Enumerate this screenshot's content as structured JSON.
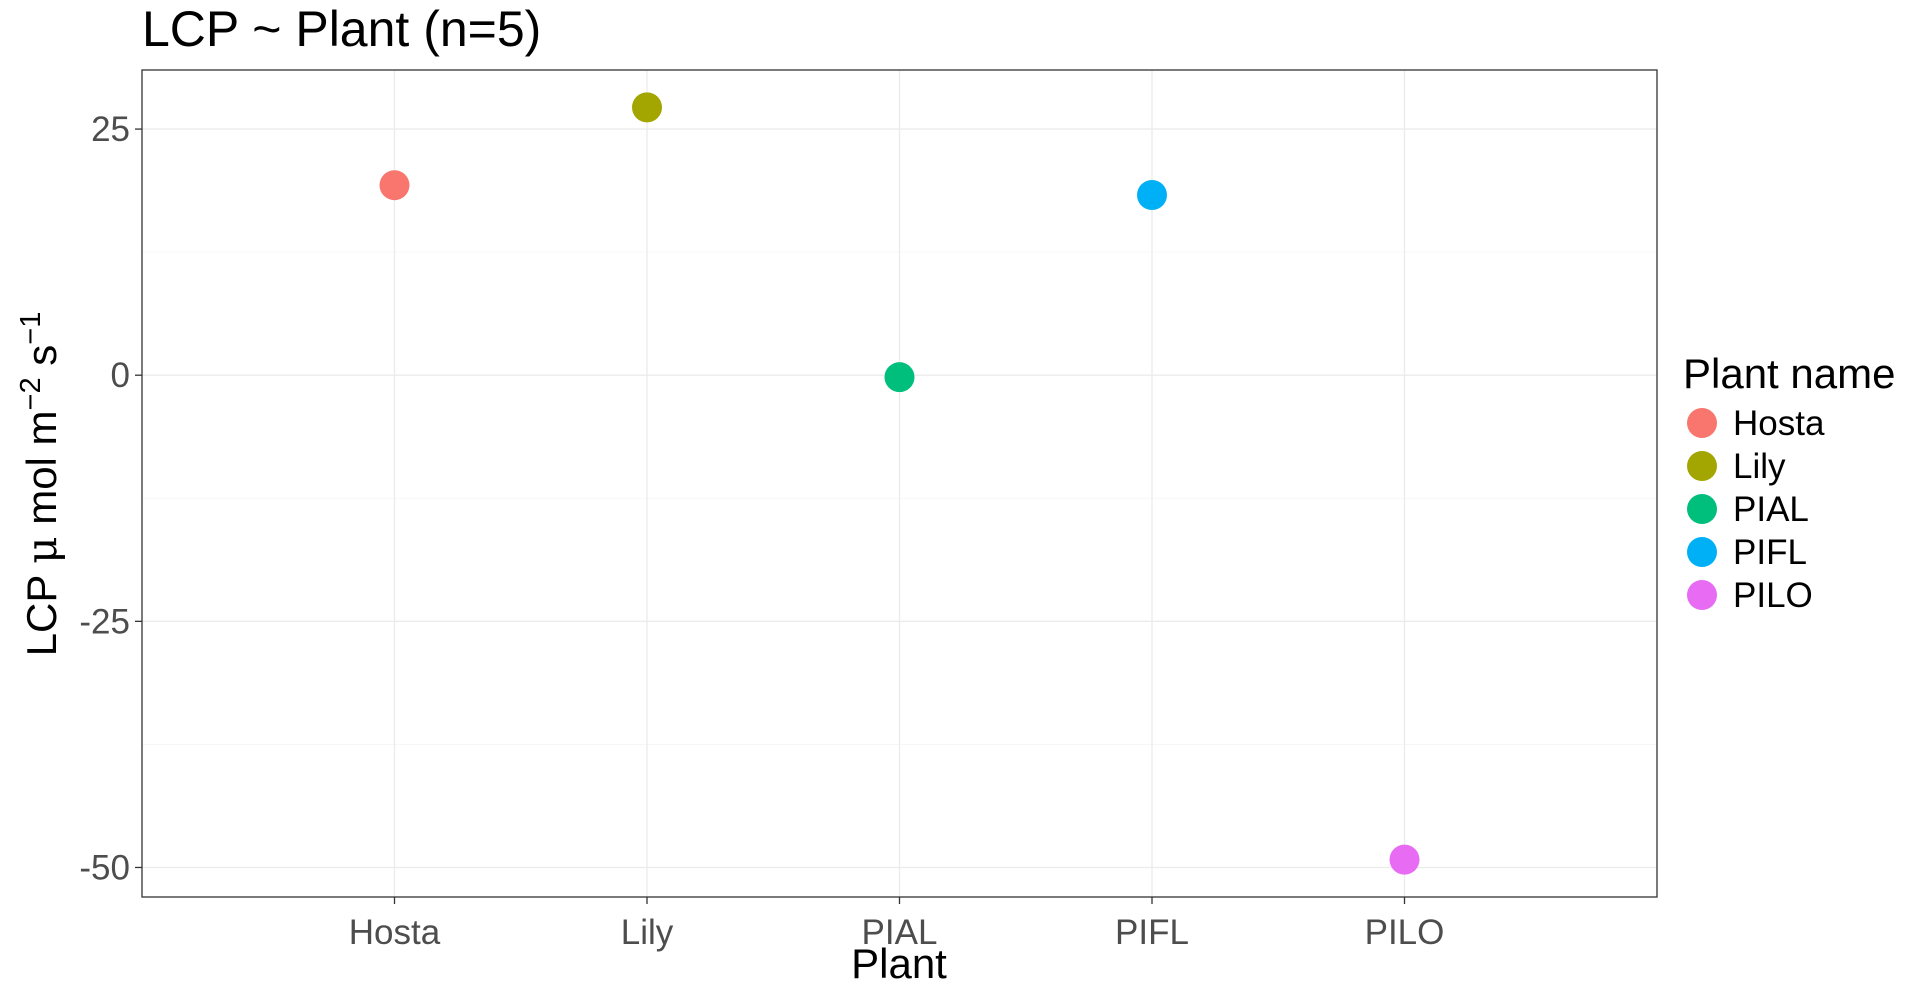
{
  "chart_data": {
    "type": "scatter",
    "title": "LCP ~ Plant (n=5)",
    "xlabel": "Plant",
    "ylabel": {
      "prefix": "LCP ",
      "mu": "μ",
      "unit_mid": " mol m",
      "exp1": "−2",
      "unit_s": " s",
      "exp2": "−1"
    },
    "categories": [
      "Hosta",
      "Lily",
      "PIAL",
      "PIFL",
      "PILO"
    ],
    "values": [
      19.3,
      27.2,
      -0.2,
      18.3,
      -49.2
    ],
    "colors": [
      "#F8766D",
      "#A3A500",
      "#00BF7D",
      "#00B0F6",
      "#E76BF3"
    ],
    "ylim": [
      -53,
      31
    ],
    "yticks": [
      25,
      0,
      -25,
      -50
    ],
    "ytick_labels": [
      "25",
      "0",
      "-25",
      "-50"
    ],
    "grid": true,
    "legend": {
      "title": "Plant name",
      "placement": "right",
      "items": [
        {
          "label": "Hosta",
          "color": "#F8766D"
        },
        {
          "label": "Lily",
          "color": "#A3A500"
        },
        {
          "label": "PIAL",
          "color": "#00BF7D"
        },
        {
          "label": "PIFL",
          "color": "#00B0F6"
        },
        {
          "label": "PILO",
          "color": "#E76BF3"
        }
      ]
    }
  }
}
